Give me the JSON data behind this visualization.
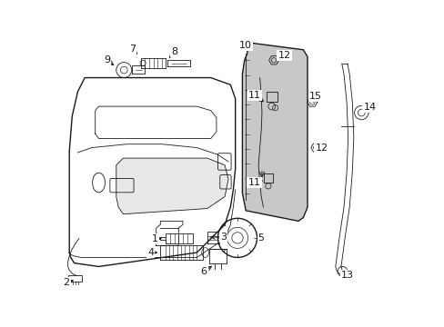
{
  "bg_color": "#ffffff",
  "line_color": "#1a1a1a",
  "panel_color": "#cccccc",
  "fig_w": 4.89,
  "fig_h": 3.6,
  "dpi": 100
}
